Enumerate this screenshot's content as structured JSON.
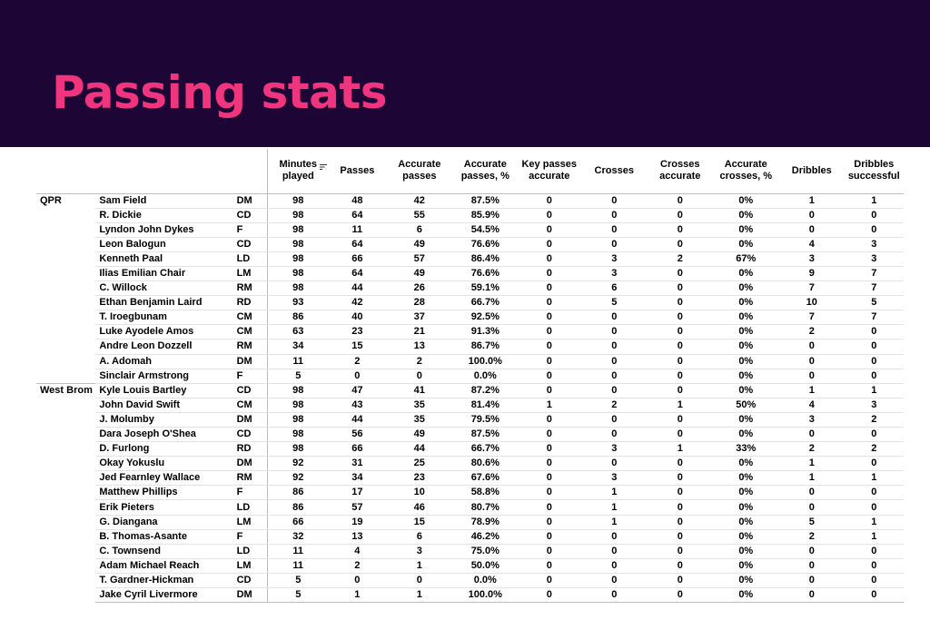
{
  "title": "Passing stats",
  "columns": [
    "Minutes played",
    "Passes",
    "Accurate passes",
    "Accurate passes, %",
    "Key passes accurate",
    "Crosses",
    "Crosses accurate",
    "Accurate crosses, %",
    "Dribbles",
    "Dribbles successful"
  ],
  "teams": [
    {
      "name": "QPR",
      "rows": [
        {
          "player": "Sam Field",
          "pos": "DM",
          "stats": [
            "98",
            "48",
            "42",
            "87.5%",
            "0",
            "0",
            "0",
            "0%",
            "1",
            "1"
          ]
        },
        {
          "player": "R. Dickie",
          "pos": "CD",
          "stats": [
            "98",
            "64",
            "55",
            "85.9%",
            "0",
            "0",
            "0",
            "0%",
            "0",
            "0"
          ]
        },
        {
          "player": "Lyndon John Dykes",
          "pos": "F",
          "stats": [
            "98",
            "11",
            "6",
            "54.5%",
            "0",
            "0",
            "0",
            "0%",
            "0",
            "0"
          ]
        },
        {
          "player": "Leon Balogun",
          "pos": "CD",
          "stats": [
            "98",
            "64",
            "49",
            "76.6%",
            "0",
            "0",
            "0",
            "0%",
            "4",
            "3"
          ]
        },
        {
          "player": "Kenneth Paal",
          "pos": "LD",
          "stats": [
            "98",
            "66",
            "57",
            "86.4%",
            "0",
            "3",
            "2",
            "67%",
            "3",
            "3"
          ]
        },
        {
          "player": "Ilias Emilian Chair",
          "pos": "LM",
          "stats": [
            "98",
            "64",
            "49",
            "76.6%",
            "0",
            "3",
            "0",
            "0%",
            "9",
            "7"
          ]
        },
        {
          "player": "C. Willock",
          "pos": "RM",
          "stats": [
            "98",
            "44",
            "26",
            "59.1%",
            "0",
            "6",
            "0",
            "0%",
            "7",
            "7"
          ]
        },
        {
          "player": "Ethan Benjamin Laird",
          "pos": "RD",
          "stats": [
            "93",
            "42",
            "28",
            "66.7%",
            "0",
            "5",
            "0",
            "0%",
            "10",
            "5"
          ]
        },
        {
          "player": "T. Iroegbunam",
          "pos": "CM",
          "stats": [
            "86",
            "40",
            "37",
            "92.5%",
            "0",
            "0",
            "0",
            "0%",
            "7",
            "7"
          ]
        },
        {
          "player": "Luke Ayodele Amos",
          "pos": "CM",
          "stats": [
            "63",
            "23",
            "21",
            "91.3%",
            "0",
            "0",
            "0",
            "0%",
            "2",
            "0"
          ]
        },
        {
          "player": "Andre Leon Dozzell",
          "pos": "RM",
          "stats": [
            "34",
            "15",
            "13",
            "86.7%",
            "0",
            "0",
            "0",
            "0%",
            "0",
            "0"
          ]
        },
        {
          "player": "A. Adomah",
          "pos": "DM",
          "stats": [
            "11",
            "2",
            "2",
            "100.0%",
            "0",
            "0",
            "0",
            "0%",
            "0",
            "0"
          ]
        },
        {
          "player": "Sinclair Armstrong",
          "pos": "F",
          "stats": [
            "5",
            "0",
            "0",
            "0.0%",
            "0",
            "0",
            "0",
            "0%",
            "0",
            "0"
          ]
        }
      ]
    },
    {
      "name": "West Brom",
      "rows": [
        {
          "player": "Kyle Louis Bartley",
          "pos": "CD",
          "stats": [
            "98",
            "47",
            "41",
            "87.2%",
            "0",
            "0",
            "0",
            "0%",
            "1",
            "1"
          ]
        },
        {
          "player": "John David Swift",
          "pos": "CM",
          "stats": [
            "98",
            "43",
            "35",
            "81.4%",
            "1",
            "2",
            "1",
            "50%",
            "4",
            "3"
          ]
        },
        {
          "player": "J. Molumby",
          "pos": "DM",
          "stats": [
            "98",
            "44",
            "35",
            "79.5%",
            "0",
            "0",
            "0",
            "0%",
            "3",
            "2"
          ]
        },
        {
          "player": "Dara Joseph O'Shea",
          "pos": "CD",
          "stats": [
            "98",
            "56",
            "49",
            "87.5%",
            "0",
            "0",
            "0",
            "0%",
            "0",
            "0"
          ]
        },
        {
          "player": "D. Furlong",
          "pos": "RD",
          "stats": [
            "98",
            "66",
            "44",
            "66.7%",
            "0",
            "3",
            "1",
            "33%",
            "2",
            "2"
          ]
        },
        {
          "player": "Okay Yokuslu",
          "pos": "DM",
          "stats": [
            "92",
            "31",
            "25",
            "80.6%",
            "0",
            "0",
            "0",
            "0%",
            "1",
            "0"
          ]
        },
        {
          "player": "Jed Fearnley Wallace",
          "pos": "RM",
          "stats": [
            "92",
            "34",
            "23",
            "67.6%",
            "0",
            "3",
            "0",
            "0%",
            "1",
            "1"
          ]
        },
        {
          "player": "Matthew Phillips",
          "pos": "F",
          "stats": [
            "86",
            "17",
            "10",
            "58.8%",
            "0",
            "1",
            "0",
            "0%",
            "0",
            "0"
          ]
        },
        {
          "player": "Erik Pieters",
          "pos": "LD",
          "stats": [
            "86",
            "57",
            "46",
            "80.7%",
            "0",
            "1",
            "0",
            "0%",
            "0",
            "0"
          ]
        },
        {
          "player": "G. Diangana",
          "pos": "LM",
          "stats": [
            "66",
            "19",
            "15",
            "78.9%",
            "0",
            "1",
            "0",
            "0%",
            "5",
            "1"
          ]
        },
        {
          "player": "B. Thomas-Asante",
          "pos": "F",
          "stats": [
            "32",
            "13",
            "6",
            "46.2%",
            "0",
            "0",
            "0",
            "0%",
            "2",
            "1"
          ]
        },
        {
          "player": "C. Townsend",
          "pos": "LD",
          "stats": [
            "11",
            "4",
            "3",
            "75.0%",
            "0",
            "0",
            "0",
            "0%",
            "0",
            "0"
          ]
        },
        {
          "player": "Adam Michael Reach",
          "pos": "LM",
          "stats": [
            "11",
            "2",
            "1",
            "50.0%",
            "0",
            "0",
            "0",
            "0%",
            "0",
            "0"
          ]
        },
        {
          "player": "T. Gardner-Hickman",
          "pos": "CD",
          "stats": [
            "5",
            "0",
            "0",
            "0.0%",
            "0",
            "0",
            "0",
            "0%",
            "0",
            "0"
          ]
        },
        {
          "player": "Jake Cyril Livermore",
          "pos": "DM",
          "stats": [
            "5",
            "1",
            "1",
            "100.0%",
            "0",
            "0",
            "0",
            "0%",
            "0",
            "0"
          ]
        }
      ]
    }
  ],
  "icons": {
    "sort": "sort-icon"
  },
  "colors": {
    "header_bg": "#1d0535",
    "title": "#f0357f"
  }
}
